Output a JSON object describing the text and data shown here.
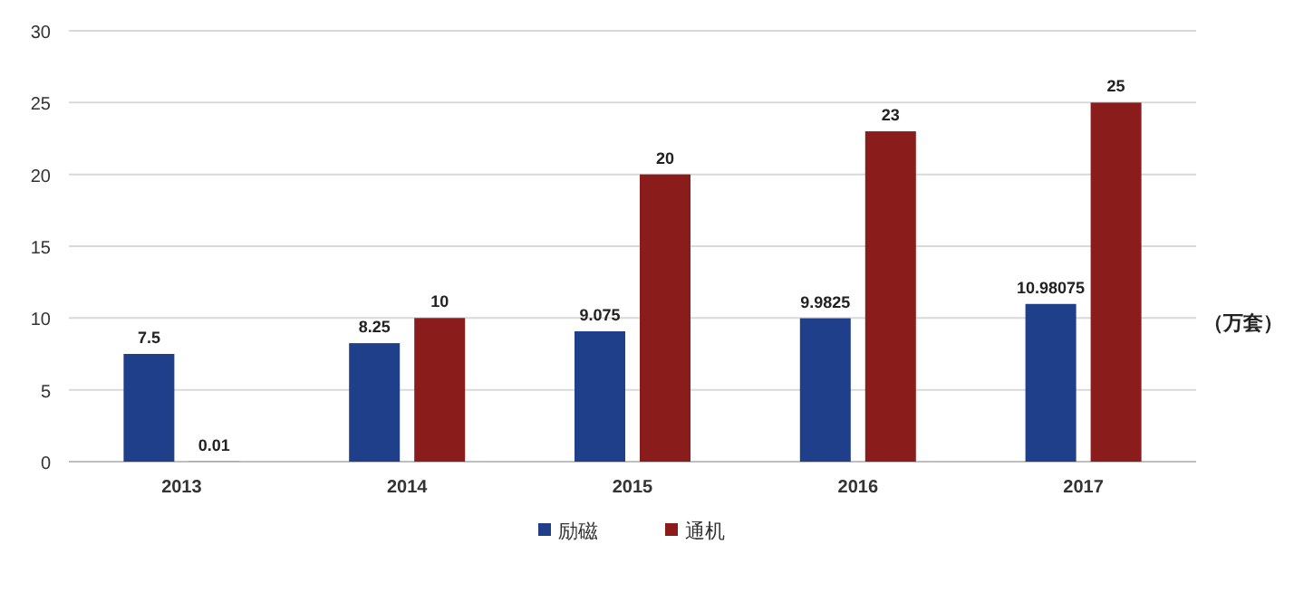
{
  "chart_data": {
    "type": "bar",
    "categories": [
      "2013",
      "2014",
      "2015",
      "2016",
      "2017"
    ],
    "series": [
      {
        "name": "励磁",
        "color": "#1f3f8a",
        "values": [
          7.5,
          8.25,
          9.075,
          9.9825,
          10.98075
        ]
      },
      {
        "name": "通机",
        "color": "#8b1c1c",
        "values": [
          0.01,
          10,
          20,
          23,
          25
        ]
      }
    ],
    "ylabel": "（万套）",
    "ylim": [
      0,
      30
    ],
    "yticks": [
      0,
      5,
      10,
      15,
      20,
      25,
      30
    ],
    "grid": "y",
    "legend": "bottom",
    "data_labels": true
  }
}
